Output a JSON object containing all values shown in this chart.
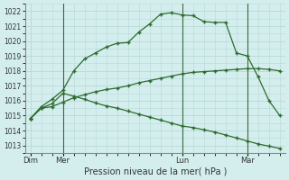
{
  "xlabel": "Pression niveau de la mer( hPa )",
  "background_color": "#d4eeee",
  "grid_color": "#b8d8d8",
  "line_color": "#2d6b2d",
  "ylim": [
    1012.5,
    1022.5
  ],
  "yticks": [
    1013,
    1014,
    1015,
    1016,
    1017,
    1018,
    1019,
    1020,
    1021,
    1022
  ],
  "xtick_labels": [
    "Dim",
    "Mer",
    "Lun",
    "Mar"
  ],
  "xtick_positions": [
    0,
    3,
    14,
    20
  ],
  "xlim": [
    -0.5,
    23.5
  ],
  "vline_positions": [
    3,
    14,
    20
  ],
  "series1_x": [
    0,
    1,
    2,
    3,
    4,
    5,
    6,
    7,
    8,
    9,
    10,
    11,
    12,
    13,
    14,
    15,
    16,
    17,
    18,
    19,
    20,
    21,
    22,
    23
  ],
  "series1_y": [
    1014.8,
    1015.5,
    1015.6,
    1015.9,
    1016.2,
    1016.4,
    1016.6,
    1016.75,
    1016.85,
    1017.0,
    1017.2,
    1017.35,
    1017.5,
    1017.65,
    1017.8,
    1017.9,
    1017.95,
    1018.0,
    1018.05,
    1018.1,
    1018.15,
    1018.15,
    1018.1,
    1018.0
  ],
  "series2_x": [
    0,
    1,
    2,
    3,
    4,
    5,
    6,
    7,
    8,
    9,
    10,
    11,
    12,
    13,
    14,
    15,
    16,
    17,
    18,
    19,
    20,
    21,
    22,
    23
  ],
  "series2_y": [
    1014.8,
    1015.6,
    1016.1,
    1016.7,
    1018.0,
    1018.8,
    1019.2,
    1019.6,
    1019.85,
    1019.9,
    1020.6,
    1021.15,
    1021.8,
    1021.9,
    1021.75,
    1021.7,
    1021.3,
    1021.25,
    1021.25,
    1019.2,
    1019.0,
    1017.6,
    1016.0,
    1015.0
  ],
  "series3_x": [
    0,
    1,
    2,
    3,
    4,
    5,
    6,
    7,
    8,
    9,
    10,
    11,
    12,
    13,
    14,
    15,
    16,
    17,
    18,
    19,
    20,
    21,
    22,
    23
  ],
  "series3_y": [
    1014.8,
    1015.5,
    1015.8,
    1016.5,
    1016.3,
    1016.1,
    1015.85,
    1015.65,
    1015.5,
    1015.3,
    1015.1,
    1014.9,
    1014.7,
    1014.5,
    1014.3,
    1014.2,
    1014.05,
    1013.9,
    1013.7,
    1013.5,
    1013.3,
    1013.1,
    1012.95,
    1012.8
  ]
}
